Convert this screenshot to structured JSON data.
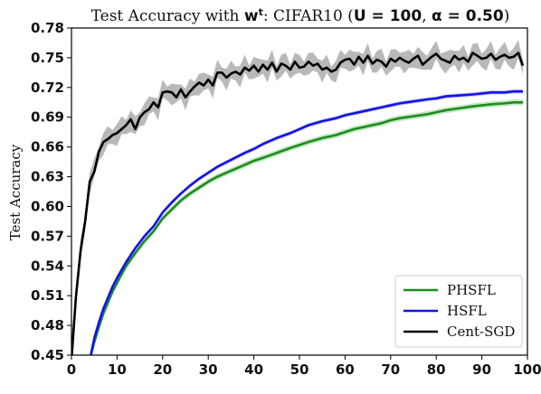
{
  "chart_data": {
    "type": "line",
    "title": {
      "prefix": "Test Accuracy with ",
      "symbol": "w",
      "superscript": "t",
      "middle": ": CIFAR10 (",
      "param1": "U = 100",
      "sep": ", ",
      "param2": "α = 0.50",
      "suffix": ")"
    },
    "xlabel": "",
    "ylabel": "Test Accuracy",
    "xlim": [
      0,
      100
    ],
    "ylim": [
      0.45,
      0.78
    ],
    "xticks": [
      0,
      10,
      20,
      30,
      40,
      50,
      60,
      70,
      80,
      90,
      100
    ],
    "xtick_labels": [
      "0",
      "10",
      "20",
      "30",
      "40",
      "50",
      "60",
      "70",
      "80",
      "90",
      "100"
    ],
    "yticks": [
      0.45,
      0.48,
      0.51,
      0.54,
      0.57,
      0.6,
      0.63,
      0.66,
      0.69,
      0.72,
      0.75,
      0.78
    ],
    "ytick_labels": [
      "0.45",
      "0.48",
      "0.51",
      "0.54",
      "0.57",
      "0.60",
      "0.63",
      "0.66",
      "0.69",
      "0.72",
      "0.75",
      "0.78"
    ],
    "grid": false,
    "legend_position": "bottom-right",
    "series": [
      {
        "name": "PHSFL",
        "color": "#1e8a1e",
        "band_color": "#8fd88f",
        "x": [
          4,
          5,
          6,
          7,
          8,
          9,
          10,
          12,
          14,
          16,
          18,
          20,
          22,
          24,
          26,
          28,
          30,
          32,
          35,
          38,
          40,
          42,
          45,
          48,
          50,
          52,
          55,
          58,
          60,
          62,
          65,
          68,
          70,
          72,
          75,
          78,
          80,
          82,
          85,
          88,
          90,
          92,
          95,
          97,
          99
        ],
        "y": [
          0.445,
          0.463,
          0.478,
          0.492,
          0.503,
          0.514,
          0.523,
          0.54,
          0.553,
          0.565,
          0.575,
          0.588,
          0.597,
          0.606,
          0.613,
          0.619,
          0.625,
          0.63,
          0.636,
          0.642,
          0.646,
          0.649,
          0.654,
          0.659,
          0.662,
          0.665,
          0.669,
          0.672,
          0.675,
          0.678,
          0.681,
          0.684,
          0.687,
          0.689,
          0.691,
          0.693,
          0.695,
          0.697,
          0.699,
          0.701,
          0.702,
          0.703,
          0.704,
          0.705,
          0.705
        ],
        "band": 0.003
      },
      {
        "name": "HSFL",
        "color": "#1414e6",
        "band_color": "#8f8fff",
        "x": [
          4,
          5,
          6,
          7,
          8,
          9,
          10,
          12,
          14,
          16,
          18,
          20,
          22,
          24,
          26,
          28,
          30,
          32,
          35,
          38,
          40,
          42,
          45,
          48,
          50,
          52,
          55,
          58,
          60,
          62,
          65,
          68,
          70,
          72,
          75,
          78,
          80,
          82,
          85,
          88,
          90,
          92,
          95,
          97,
          99
        ],
        "y": [
          0.445,
          0.467,
          0.483,
          0.497,
          0.508,
          0.519,
          0.528,
          0.544,
          0.558,
          0.57,
          0.58,
          0.594,
          0.604,
          0.613,
          0.621,
          0.628,
          0.634,
          0.64,
          0.647,
          0.654,
          0.658,
          0.663,
          0.669,
          0.674,
          0.678,
          0.682,
          0.686,
          0.689,
          0.692,
          0.694,
          0.697,
          0.7,
          0.702,
          0.704,
          0.706,
          0.708,
          0.709,
          0.711,
          0.712,
          0.713,
          0.714,
          0.715,
          0.715,
          0.716,
          0.716
        ],
        "band": 0.002
      },
      {
        "name": "Cent-SGD",
        "color": "#000000",
        "band_color": "#808080",
        "x": [
          0,
          1,
          2,
          3,
          4,
          5,
          6,
          7,
          8,
          9,
          10,
          11,
          12,
          13,
          14,
          15,
          16,
          17,
          18,
          19,
          20,
          21,
          22,
          23,
          24,
          25,
          26,
          27,
          28,
          29,
          30,
          31,
          32,
          33,
          34,
          35,
          36,
          37,
          38,
          39,
          40,
          41,
          42,
          43,
          44,
          45,
          46,
          47,
          48,
          49,
          50,
          51,
          52,
          53,
          54,
          55,
          56,
          57,
          58,
          59,
          60,
          61,
          62,
          63,
          64,
          65,
          66,
          67,
          68,
          69,
          70,
          71,
          72,
          73,
          74,
          75,
          76,
          77,
          78,
          79,
          80,
          81,
          82,
          83,
          84,
          85,
          86,
          87,
          88,
          89,
          90,
          91,
          92,
          93,
          94,
          95,
          96,
          97,
          98,
          99
        ],
        "y": [
          0.445,
          0.51,
          0.555,
          0.585,
          0.625,
          0.635,
          0.655,
          0.665,
          0.668,
          0.672,
          0.674,
          0.678,
          0.682,
          0.688,
          0.678,
          0.69,
          0.695,
          0.698,
          0.705,
          0.7,
          0.715,
          0.716,
          0.715,
          0.71,
          0.718,
          0.71,
          0.716,
          0.721,
          0.725,
          0.722,
          0.728,
          0.722,
          0.735,
          0.735,
          0.73,
          0.734,
          0.736,
          0.733,
          0.74,
          0.737,
          0.742,
          0.736,
          0.743,
          0.738,
          0.745,
          0.736,
          0.744,
          0.742,
          0.738,
          0.746,
          0.74,
          0.741,
          0.746,
          0.742,
          0.744,
          0.738,
          0.74,
          0.736,
          0.738,
          0.745,
          0.748,
          0.749,
          0.743,
          0.751,
          0.745,
          0.752,
          0.744,
          0.748,
          0.746,
          0.741,
          0.749,
          0.746,
          0.75,
          0.747,
          0.745,
          0.749,
          0.752,
          0.743,
          0.747,
          0.751,
          0.754,
          0.749,
          0.747,
          0.745,
          0.752,
          0.748,
          0.75,
          0.746,
          0.755,
          0.752,
          0.749,
          0.75,
          0.754,
          0.748,
          0.751,
          0.753,
          0.75,
          0.751,
          0.755,
          0.742
        ],
        "band": 0.005
      }
    ]
  }
}
